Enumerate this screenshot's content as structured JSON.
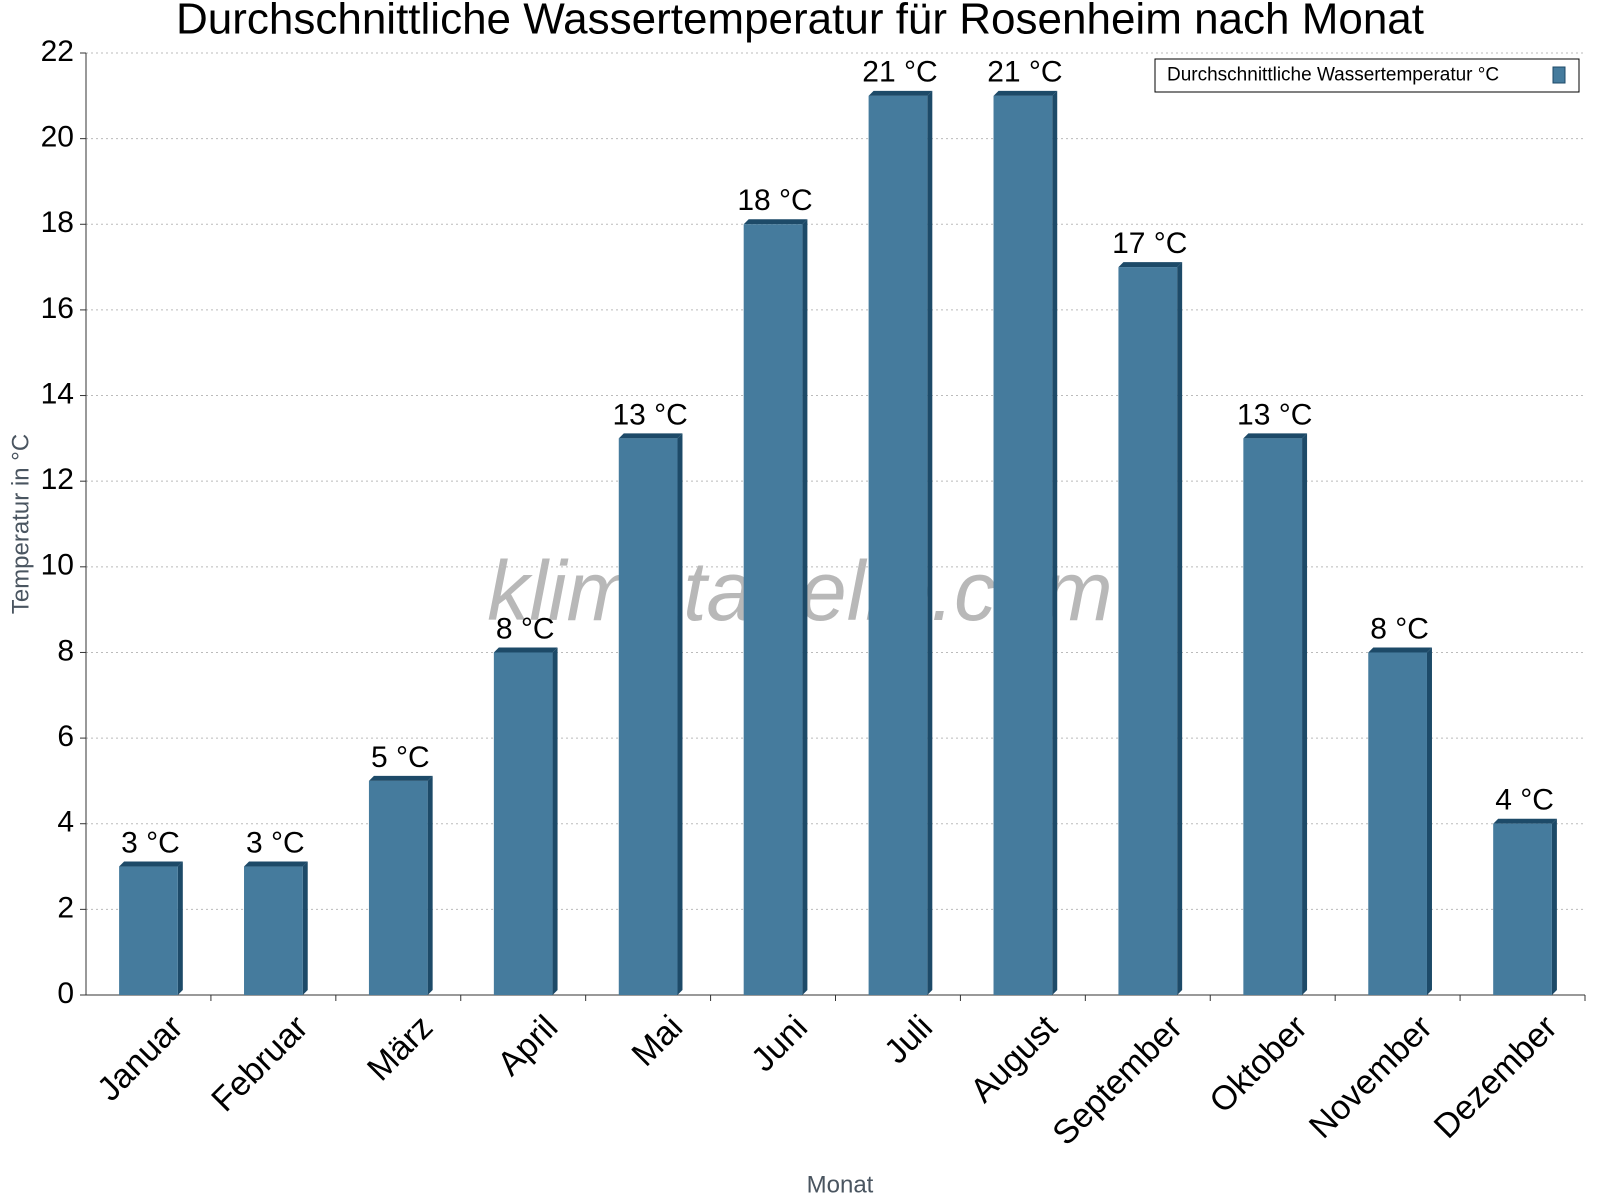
{
  "chart_data": {
    "type": "bar",
    "title": "Durchschnittliche Wassertemperatur für Rosenheim nach Monat",
    "watermark": "klimatabelle.com",
    "x_label": "Monat",
    "y_label": "Temperatur in °C",
    "categories": [
      "Januar",
      "Februar",
      "März",
      "April",
      "Mai",
      "Juni",
      "Juli",
      "August",
      "September",
      "Oktober",
      "November",
      "Dezember"
    ],
    "series": [
      {
        "name": "Durchschnittliche Wassertemperatur °C",
        "color": "#457b9d",
        "values": [
          3,
          3,
          5,
          8,
          13,
          18,
          21,
          21,
          17,
          13,
          8,
          4
        ],
        "value_labels": [
          "3 °C",
          "3 °C",
          "5 °C",
          "8 °C",
          "13 °C",
          "18 °C",
          "21 °C",
          "21 °C",
          "17 °C",
          "13 °C",
          "8 °C",
          "4 °C"
        ]
      }
    ],
    "ylim": [
      0,
      22
    ],
    "yticks": [
      0,
      2,
      4,
      6,
      8,
      10,
      12,
      14,
      16,
      18,
      20,
      22
    ],
    "grid": true,
    "legend": "top-right"
  }
}
